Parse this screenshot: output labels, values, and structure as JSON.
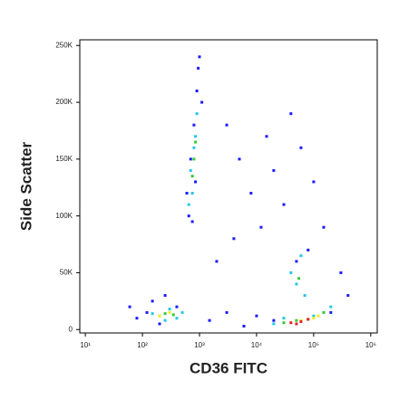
{
  "chart_data": {
    "type": "scatter",
    "x_label": "CD36 FITC",
    "y_label": "Side Scatter",
    "xscale": "log",
    "xlim": [
      8,
      1300000
    ],
    "xticks": [
      {
        "value": 10,
        "label": "10¹"
      },
      {
        "value": 100,
        "label": "10²"
      },
      {
        "value": 1000,
        "label": "10³"
      },
      {
        "value": 10000,
        "label": "10⁴"
      },
      {
        "value": 100000,
        "label": "10⁵"
      },
      {
        "value": 1000000,
        "label": "10⁶"
      }
    ],
    "ylim": [
      -3000,
      255000
    ],
    "yticks": [
      0,
      {
        "value": 50000,
        "label": "50K"
      },
      {
        "value": 100000,
        "label": "100K"
      },
      {
        "value": 150000,
        "label": "150K"
      },
      {
        "value": 200000,
        "label": "200K"
      },
      {
        "value": 250000,
        "label": "250K"
      }
    ],
    "series": [
      {
        "color": "#1a1aff",
        "x": [
          600,
          700,
          800,
          900,
          1000,
          650,
          750,
          1100,
          850,
          950,
          3000,
          5000,
          8000,
          15000,
          20000,
          40000,
          60000,
          100000,
          30000,
          12000,
          2000,
          4000,
          50000,
          80000,
          150000,
          300000,
          80,
          150,
          200,
          400,
          1500,
          3000,
          6000,
          10000,
          20000,
          200000,
          400000,
          250,
          120,
          60
        ],
        "values": [
          120000,
          150000,
          180000,
          210000,
          240000,
          100000,
          95000,
          200000,
          130000,
          230000,
          180000,
          150000,
          120000,
          170000,
          140000,
          190000,
          160000,
          130000,
          110000,
          90000,
          60000,
          80000,
          60000,
          70000,
          90000,
          50000,
          10000,
          25000,
          5000,
          20000,
          8000,
          15000,
          3000,
          12000,
          8000,
          15000,
          30000,
          30000,
          15000,
          20000
        ]
      },
      {
        "color": "#22c8e8",
        "x": [
          700,
          800,
          750,
          900,
          850,
          650,
          40000,
          60000,
          50000,
          70000,
          200,
          300,
          400,
          150,
          30000,
          100000,
          200000,
          20000,
          500,
          250
        ],
        "values": [
          140000,
          160000,
          120000,
          190000,
          170000,
          110000,
          50000,
          65000,
          40000,
          30000,
          12000,
          18000,
          10000,
          14000,
          10000,
          12000,
          20000,
          5000,
          15000,
          8000
        ]
      },
      {
        "color": "#33cc33",
        "x": [
          800,
          750,
          850,
          250,
          350,
          50000,
          80000,
          150000,
          30000,
          55000
        ],
        "values": [
          150000,
          135000,
          165000,
          14000,
          13000,
          8000,
          9000,
          15000,
          6000,
          45000
        ]
      },
      {
        "color": "#eeee22",
        "x": [
          300,
          200,
          60000,
          100000,
          120000
        ],
        "values": [
          15000,
          12000,
          8000,
          10000,
          12000
        ]
      },
      {
        "color": "#e22222",
        "x": [
          40000,
          60000,
          80000,
          50000
        ],
        "values": [
          6000,
          7000,
          9000,
          5000
        ]
      }
    ]
  }
}
